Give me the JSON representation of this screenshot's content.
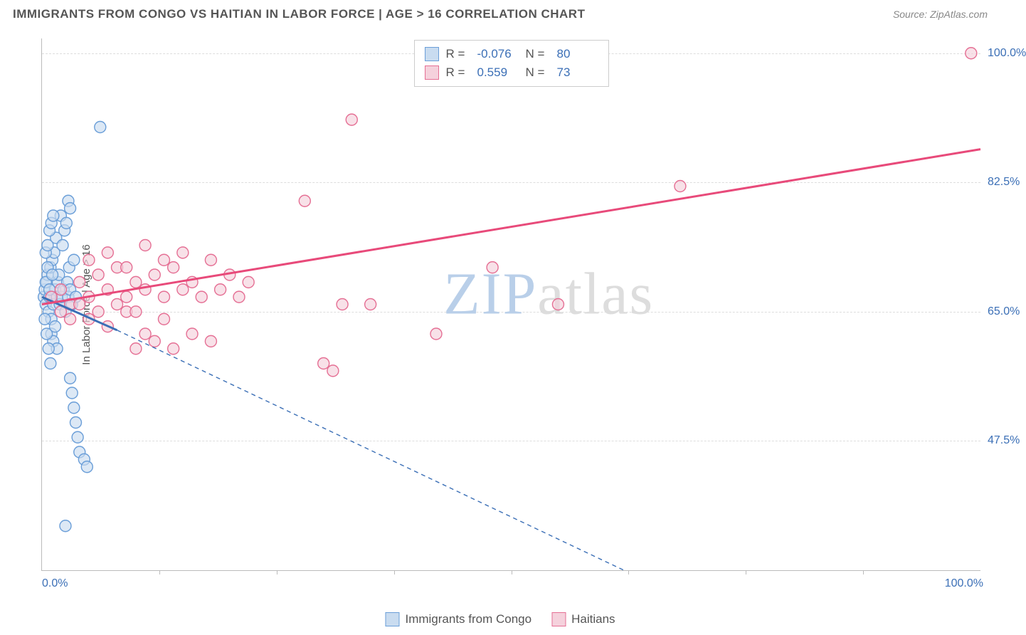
{
  "header": {
    "title": "IMMIGRANTS FROM CONGO VS HAITIAN IN LABOR FORCE | AGE > 16 CORRELATION CHART",
    "source": "Source: ZipAtlas.com"
  },
  "watermark": {
    "zip": "ZIP",
    "atlas": "atlas",
    "zip_color": "#b9cfe9",
    "atlas_color": "#dddddd"
  },
  "chart": {
    "type": "scatter",
    "y_axis_label": "In Labor Force | Age > 16",
    "x_start_label": "0.0%",
    "x_end_label": "100.0%",
    "xlim": [
      0,
      100
    ],
    "ylim": [
      30,
      102
    ],
    "y_ticks": [
      {
        "value": 47.5,
        "label": "47.5%"
      },
      {
        "value": 65.0,
        "label": "65.0%"
      },
      {
        "value": 82.5,
        "label": "82.5%"
      },
      {
        "value": 100.0,
        "label": "100.0%"
      }
    ],
    "x_tick_values": [
      12.5,
      25,
      37.5,
      50,
      62.5,
      75,
      87.5
    ],
    "background_color": "#ffffff",
    "grid_color": "#dddddd",
    "axis_color": "#bbbbbb",
    "tick_label_color": "#3b6fb6",
    "series": [
      {
        "id": "congo",
        "name": "Immigrants from Congo",
        "fill_color": "#c9dcf0",
        "stroke_color": "#6a9ed8",
        "marker_radius": 8,
        "r_label": "R =",
        "r_value": "-0.076",
        "n_label": "N =",
        "n_value": "80",
        "regression": {
          "solid": {
            "x1": 0,
            "y1": 67,
            "x2": 8,
            "y2": 62.5,
            "width": 3
          },
          "dashed": {
            "x1": 8,
            "y1": 62.5,
            "x2": 62,
            "y2": 30,
            "width": 1.4,
            "dash": "6,5"
          },
          "color": "#3b6fb6"
        },
        "points": [
          [
            0.2,
            67
          ],
          [
            0.3,
            68
          ],
          [
            0.4,
            66
          ],
          [
            0.5,
            69
          ],
          [
            0.6,
            70
          ],
          [
            0.7,
            65
          ],
          [
            0.8,
            67
          ],
          [
            0.9,
            71
          ],
          [
            1.0,
            64
          ],
          [
            1.1,
            72
          ],
          [
            1.2,
            66
          ],
          [
            1.3,
            73
          ],
          [
            1.4,
            68
          ],
          [
            1.5,
            75
          ],
          [
            1.6,
            67
          ],
          [
            1.7,
            69
          ],
          [
            1.8,
            70
          ],
          [
            1.9,
            66
          ],
          [
            2.0,
            78
          ],
          [
            2.1,
            67
          ],
          [
            2.2,
            74
          ],
          [
            2.3,
            68
          ],
          [
            2.4,
            76
          ],
          [
            2.5,
            65
          ],
          [
            2.6,
            77
          ],
          [
            2.7,
            69
          ],
          [
            2.8,
            67
          ],
          [
            2.9,
            71
          ],
          [
            3.0,
            68
          ],
          [
            3.2,
            66
          ],
          [
            3.4,
            72
          ],
          [
            3.6,
            67
          ],
          [
            1.0,
            62
          ],
          [
            1.2,
            61
          ],
          [
            1.4,
            63
          ],
          [
            1.6,
            60
          ],
          [
            6.2,
            90
          ],
          [
            3.0,
            56
          ],
          [
            3.2,
            54
          ],
          [
            3.4,
            52
          ],
          [
            3.6,
            50
          ],
          [
            3.8,
            48
          ],
          [
            4.0,
            46
          ],
          [
            4.5,
            45
          ],
          [
            4.8,
            44
          ],
          [
            2.5,
            36
          ],
          [
            2.8,
            80
          ],
          [
            3.0,
            79
          ],
          [
            0.4,
            73
          ],
          [
            0.6,
            74
          ],
          [
            0.8,
            76
          ],
          [
            1.0,
            77
          ],
          [
            1.2,
            78
          ],
          [
            0.3,
            64
          ],
          [
            0.5,
            62
          ],
          [
            0.7,
            60
          ],
          [
            0.9,
            58
          ],
          [
            0.4,
            69
          ],
          [
            0.6,
            71
          ],
          [
            0.8,
            68
          ],
          [
            1.1,
            70
          ]
        ]
      },
      {
        "id": "haitians",
        "name": "Haitians",
        "fill_color": "#f5d1dc",
        "stroke_color": "#e56f94",
        "marker_radius": 8,
        "r_label": "R =",
        "r_value": "0.559",
        "n_label": "N =",
        "n_value": "73",
        "regression": {
          "solid": {
            "x1": 0,
            "y1": 66,
            "x2": 100,
            "y2": 87,
            "width": 3
          },
          "color": "#e84a7a"
        },
        "points": [
          [
            1,
            67
          ],
          [
            2,
            68
          ],
          [
            3,
            66
          ],
          [
            4,
            69
          ],
          [
            5,
            67
          ],
          [
            6,
            70
          ],
          [
            7,
            68
          ],
          [
            8,
            71
          ],
          [
            9,
            67
          ],
          [
            10,
            69
          ],
          [
            11,
            68
          ],
          [
            12,
            70
          ],
          [
            13,
            67
          ],
          [
            14,
            71
          ],
          [
            15,
            68
          ],
          [
            16,
            69
          ],
          [
            17,
            67
          ],
          [
            18,
            72
          ],
          [
            19,
            68
          ],
          [
            20,
            70
          ],
          [
            21,
            67
          ],
          [
            22,
            69
          ],
          [
            5,
            64
          ],
          [
            7,
            63
          ],
          [
            9,
            65
          ],
          [
            11,
            62
          ],
          [
            13,
            64
          ],
          [
            5,
            72
          ],
          [
            7,
            73
          ],
          [
            9,
            71
          ],
          [
            11,
            74
          ],
          [
            13,
            72
          ],
          [
            15,
            73
          ],
          [
            28,
            80
          ],
          [
            30,
            58
          ],
          [
            31,
            57
          ],
          [
            32,
            66
          ],
          [
            33,
            91
          ],
          [
            35,
            66
          ],
          [
            42,
            62
          ],
          [
            48,
            71
          ],
          [
            55,
            66
          ],
          [
            68,
            82
          ],
          [
            99,
            100
          ],
          [
            2,
            65
          ],
          [
            3,
            64
          ],
          [
            4,
            66
          ],
          [
            6,
            65
          ],
          [
            8,
            66
          ],
          [
            10,
            65
          ],
          [
            10,
            60
          ],
          [
            12,
            61
          ],
          [
            14,
            60
          ],
          [
            16,
            62
          ],
          [
            18,
            61
          ]
        ]
      }
    ]
  },
  "legend_bottom": {
    "items": [
      {
        "swatch_fill": "#c9dcf0",
        "swatch_stroke": "#6a9ed8",
        "label": "Immigrants from Congo"
      },
      {
        "swatch_fill": "#f5d1dc",
        "swatch_stroke": "#e56f94",
        "label": "Haitians"
      }
    ]
  }
}
